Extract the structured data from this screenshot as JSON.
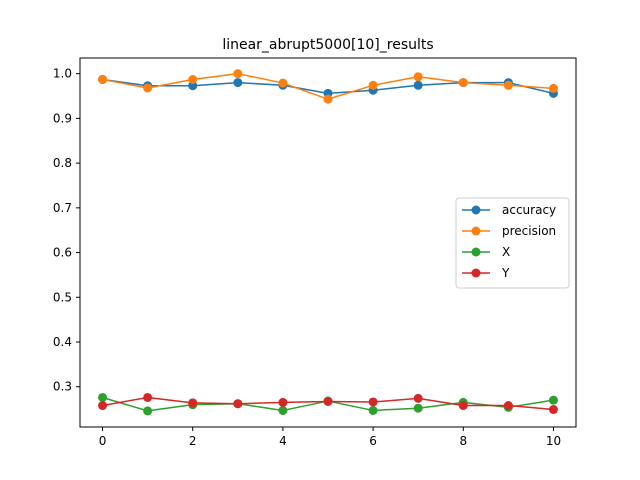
{
  "chart_data": {
    "type": "line",
    "title": "linear_abrupt5000[10]_results",
    "xlabel": "",
    "ylabel": "",
    "xlim": [
      -0.5,
      10.5
    ],
    "ylim": [
      0.21,
      1.035
    ],
    "xticks": [
      0,
      2,
      4,
      6,
      8,
      10
    ],
    "xtick_labels": [
      "0",
      "2",
      "4",
      "6",
      "8",
      "10"
    ],
    "yticks": [
      0.3,
      0.4,
      0.5,
      0.6,
      0.7,
      0.8,
      0.9,
      1.0
    ],
    "ytick_labels": [
      "0.3",
      "0.4",
      "0.5",
      "0.6",
      "0.7",
      "0.8",
      "0.9",
      "1.0"
    ],
    "grid": false,
    "legend_position": "center-right",
    "x": [
      0,
      1,
      2,
      3,
      4,
      5,
      6,
      7,
      8,
      9,
      10
    ],
    "series": [
      {
        "name": "accuracy",
        "color": "#1f77b4",
        "values": [
          0.987,
          0.973,
          0.973,
          0.98,
          0.974,
          0.956,
          0.963,
          0.974,
          0.98,
          0.98,
          0.956
        ]
      },
      {
        "name": "precision",
        "color": "#ff7f0e",
        "values": [
          0.987,
          0.968,
          0.987,
          1.0,
          0.979,
          0.943,
          0.974,
          0.993,
          0.98,
          0.974,
          0.967
        ]
      },
      {
        "name": "X",
        "color": "#2ca02c",
        "values": [
          0.276,
          0.246,
          0.26,
          0.262,
          0.247,
          0.268,
          0.247,
          0.252,
          0.265,
          0.254,
          0.27
        ]
      },
      {
        "name": "Y",
        "color": "#d62728",
        "values": [
          0.258,
          0.276,
          0.264,
          0.262,
          0.265,
          0.267,
          0.266,
          0.274,
          0.258,
          0.258,
          0.249
        ]
      }
    ]
  }
}
